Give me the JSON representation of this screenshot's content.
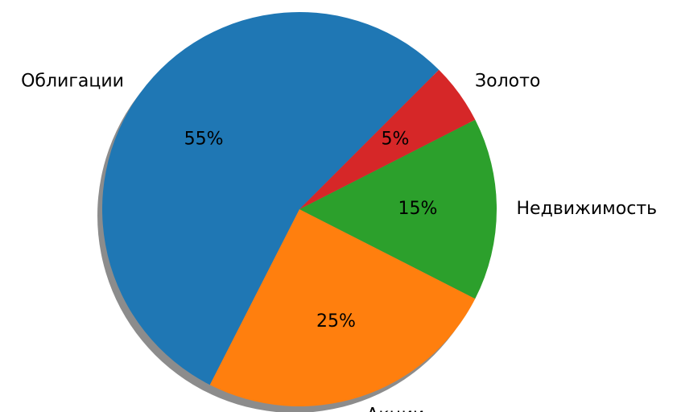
{
  "chart_data": {
    "type": "pie",
    "categories": [
      "Облигации",
      "Акции",
      "Недвижимость",
      "Золото"
    ],
    "values": [
      55,
      25,
      15,
      5
    ],
    "value_labels": [
      "55%",
      "25%",
      "15%",
      "5%"
    ],
    "colors": [
      "#1f77b4",
      "#ff7f0e",
      "#2ca02c",
      "#d62728"
    ],
    "start_angle": 45,
    "shadow": true
  }
}
